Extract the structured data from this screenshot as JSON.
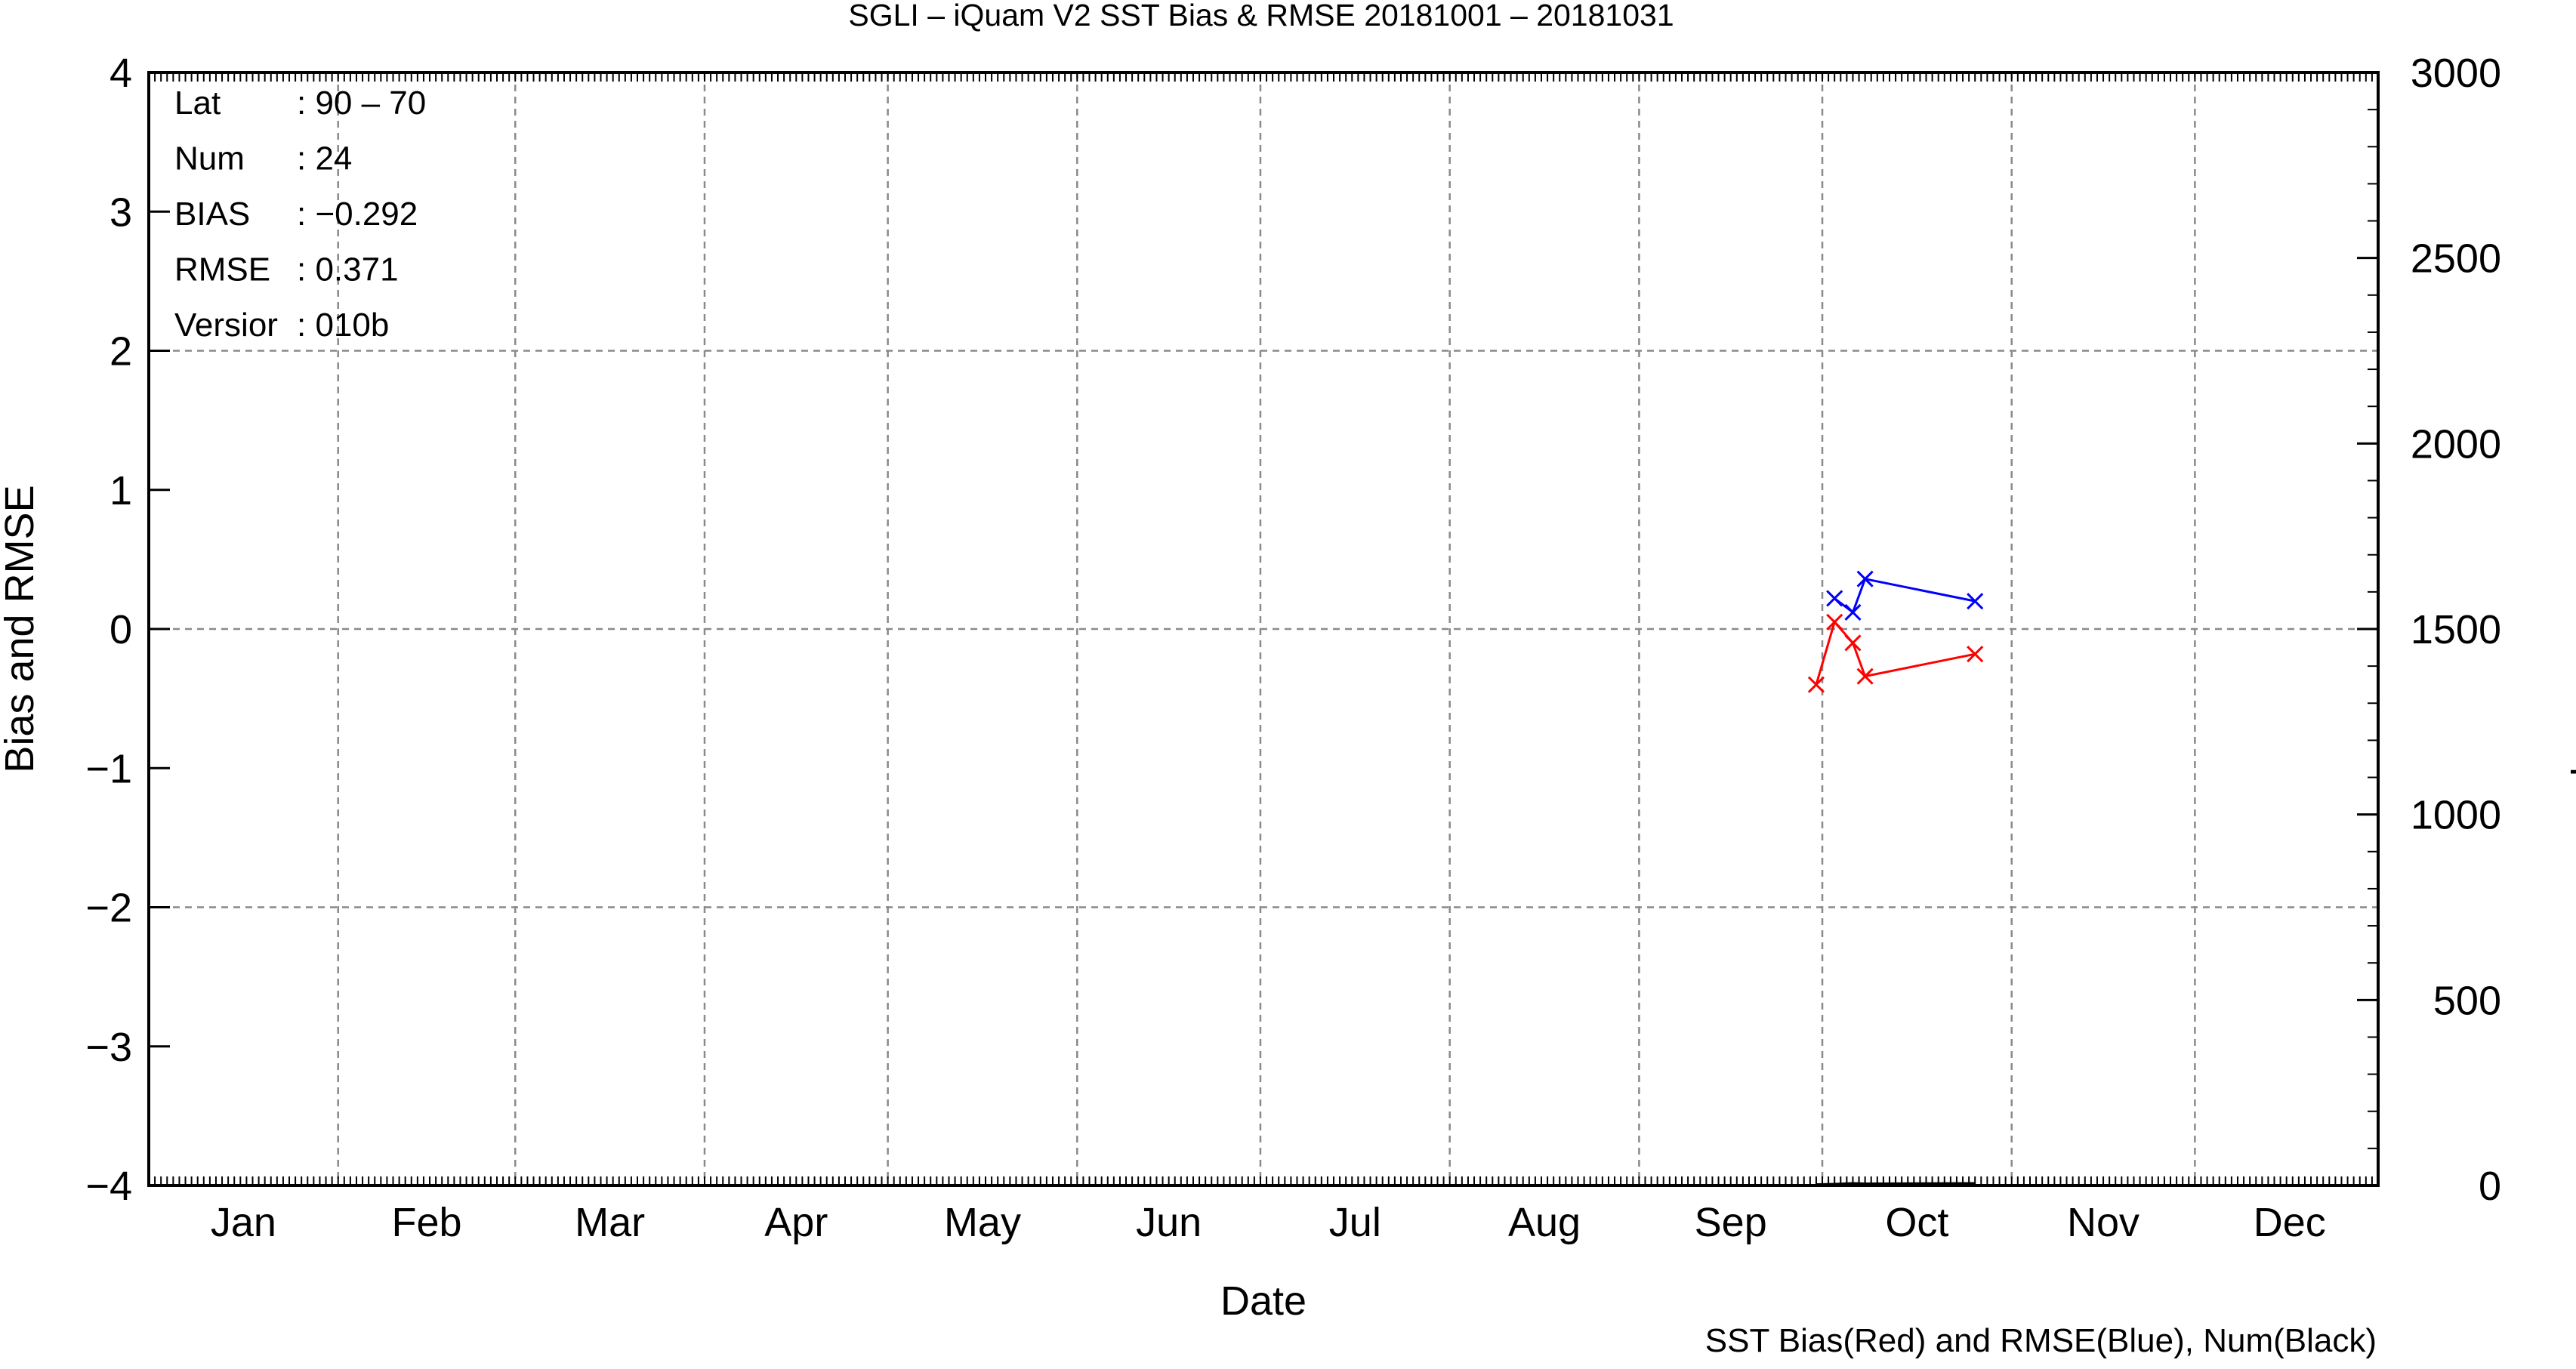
{
  "chart_data": {
    "type": "line",
    "title": "SGLI – iQuam V2 SST Bias & RMSE 20181001 – 20181031",
    "xlabel": "Date",
    "ylabel": "Bias and RMSE",
    "y2label": "Num of Match–up",
    "caption": "SST Bias(Red) and RMSE(Blue), Num(Black)",
    "x_categories": [
      "Jan",
      "Feb",
      "Mar",
      "Apr",
      "May",
      "Jun",
      "Jul",
      "Aug",
      "Sep",
      "Oct",
      "Nov",
      "Dec"
    ],
    "xlim_day_of_year": [
      1,
      366
    ],
    "ylim": [
      -4,
      4
    ],
    "y_ticks": [
      "−4",
      "−3",
      "−2",
      "−1",
      "0",
      "1",
      "2",
      "3",
      "4"
    ],
    "y_tick_values": [
      -4,
      -3,
      -2,
      -1,
      0,
      1,
      2,
      3,
      4
    ],
    "y2lim": [
      0,
      3000
    ],
    "y2_ticks": [
      "0",
      "500",
      "1000",
      "1500",
      "2000",
      "2500",
      "3000"
    ],
    "y2_tick_values": [
      0,
      500,
      1000,
      1500,
      2000,
      2500,
      3000
    ],
    "grid": true,
    "info": [
      {
        "label": "Lat",
        "value": ": 90 – 70"
      },
      {
        "label": "Num",
        "value": ": 24"
      },
      {
        "label": "BIAS",
        "value": ": −0.292"
      },
      {
        "label": "RMSE",
        "value": ": 0.371"
      },
      {
        "label": "Versior",
        "value": ": 010b"
      }
    ],
    "series": [
      {
        "color": "#ff0000",
        "axis": "left",
        "day_of_year": [
          274,
          277,
          280,
          282,
          300
        ],
        "values": [
          -0.4,
          0.05,
          -0.1,
          -0.34,
          -0.18
        ]
      },
      {
        "color": "#0000ff",
        "axis": "left",
        "day_of_year": [
          277,
          280,
          282,
          300
        ],
        "values": [
          0.22,
          0.12,
          0.36,
          0.2
        ]
      },
      {
        "color": "#000000",
        "axis": "right",
        "day_of_year": [
          274,
          277,
          280,
          282,
          300
        ],
        "values": [
          3,
          4,
          6,
          5,
          6
        ]
      }
    ]
  }
}
